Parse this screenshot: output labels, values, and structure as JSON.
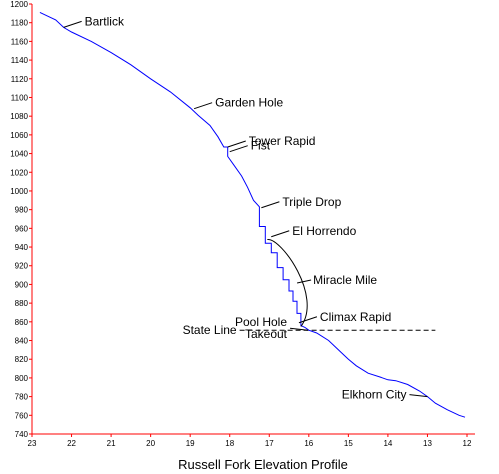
{
  "chart_data": {
    "type": "line",
    "title": "Russell Fork Elevation Profile",
    "xlabel": "",
    "ylabel": "",
    "xlim": [
      23,
      12
    ],
    "ylim": [
      740,
      1200
    ],
    "x_reversed": true,
    "grid": false,
    "xticks": [
      23,
      22,
      21,
      20,
      19,
      18,
      17,
      16,
      15,
      14,
      13,
      12
    ],
    "yticks": [
      740,
      760,
      780,
      800,
      820,
      840,
      860,
      880,
      900,
      920,
      940,
      960,
      980,
      1000,
      1020,
      1040,
      1060,
      1080,
      1100,
      1120,
      1140,
      1160,
      1180,
      1200
    ],
    "colors": {
      "profile": "#0000ff",
      "axes": "#ff0000",
      "annotations": "#000000"
    },
    "series": [
      {
        "name": "",
        "x": [
          22.8,
          22.6,
          22.4,
          22.2,
          22.0,
          21.5,
          21.0,
          20.5,
          20.0,
          19.5,
          19.0,
          18.8,
          18.5,
          18.3,
          18.15,
          18.05,
          18.05,
          17.9,
          17.7,
          17.55,
          17.4,
          17.25,
          17.25,
          17.1,
          17.1,
          16.95,
          16.95,
          16.8,
          16.8,
          16.65,
          16.65,
          16.5,
          16.5,
          16.4,
          16.4,
          16.3,
          16.3,
          16.2,
          16.2,
          16.1,
          16.0,
          15.8,
          15.5,
          15.3,
          15.1,
          15.0,
          14.8,
          14.5,
          14.2,
          14.0,
          13.8,
          13.5,
          13.2,
          13.0,
          12.8,
          12.5,
          12.2,
          12.05
        ],
        "y": [
          1191,
          1187,
          1183,
          1175,
          1170,
          1160,
          1148,
          1135,
          1120,
          1106,
          1089,
          1081,
          1070,
          1058,
          1047,
          1047,
          1037,
          1028,
          1016,
          1004,
          990,
          983,
          962,
          962,
          944,
          944,
          934,
          934,
          918,
          918,
          905,
          905,
          893,
          893,
          882,
          882,
          869,
          869,
          856,
          854,
          851,
          848,
          840,
          832,
          824,
          820,
          813,
          805,
          801,
          798,
          797,
          793,
          786,
          780,
          773,
          766,
          760,
          758
        ]
      }
    ],
    "reference_line": {
      "label": "State Line",
      "y": 851,
      "x_from": 17.75,
      "x_to": 12.8,
      "style": "dashed"
    },
    "bracket": {
      "label": "Miracle Mile",
      "x_from": 17.05,
      "x_to": 16.15,
      "y_top": 948,
      "y_bottom": 855
    },
    "annotations": [
      {
        "text": "Bartlick",
        "x": 22.2,
        "y": 1175,
        "side": "right"
      },
      {
        "text": "Garden Hole",
        "x": 18.9,
        "y": 1088,
        "side": "right"
      },
      {
        "text": "Tower Rapid",
        "x": 18.05,
        "y": 1047,
        "side": "right"
      },
      {
        "text": "Fist",
        "x": 18.0,
        "y": 1042,
        "side": "right"
      },
      {
        "text": "Triple Drop",
        "x": 17.2,
        "y": 982,
        "side": "right"
      },
      {
        "text": "El Horrendo",
        "x": 16.95,
        "y": 951,
        "side": "right"
      },
      {
        "text": "Climax Rapid",
        "x": 16.25,
        "y": 859,
        "side": "right"
      },
      {
        "text": "Pool Hole\nTakeout",
        "x": 16.02,
        "y": 851,
        "side": "left"
      },
      {
        "text": "Elkhorn City",
        "x": 13.0,
        "y": 780,
        "side": "left"
      }
    ]
  }
}
